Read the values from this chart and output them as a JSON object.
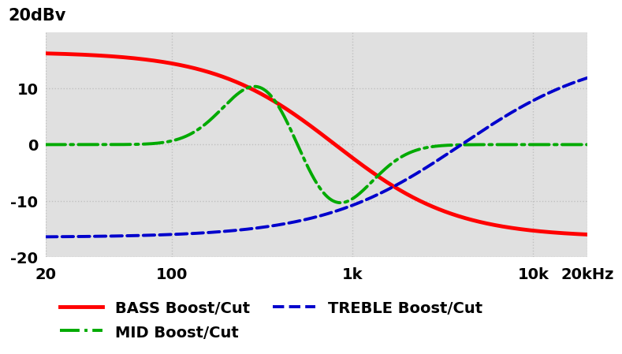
{
  "ylabel_text": "20dBv",
  "xlabel_ticks": [
    20,
    100,
    1000,
    10000,
    20000
  ],
  "xlabel_tick_labels": [
    "20",
    "100",
    "1k",
    "10k",
    "20kHz"
  ],
  "ylim": [
    -20,
    20
  ],
  "yticks": [
    -20,
    -10,
    0,
    10
  ],
  "grid_color": "#c0c0c0",
  "background_color": "#e0e0e0",
  "bass_color": "#ff0000",
  "mid_color": "#00aa00",
  "treble_color": "#0000cc",
  "bass_label": "BASS Boost/Cut",
  "mid_label": "MID Boost/Cut",
  "treble_label": "TREBLE Boost/Cut",
  "bass_linewidth": 3.5,
  "mid_linewidth": 2.8,
  "treble_linewidth": 2.8,
  "legend_fontsize": 14,
  "tick_fontsize": 14,
  "ylabel_fontsize": 15,
  "bass_fc": 800,
  "bass_slope": 1.5,
  "bass_gain": 16.5,
  "mid_fc_boost": 350,
  "mid_fc_cut": 700,
  "mid_bw": 0.22,
  "mid_gain": 14.5,
  "treble_fc": 4000,
  "treble_slope": 1.3,
  "treble_gain": 16.5
}
